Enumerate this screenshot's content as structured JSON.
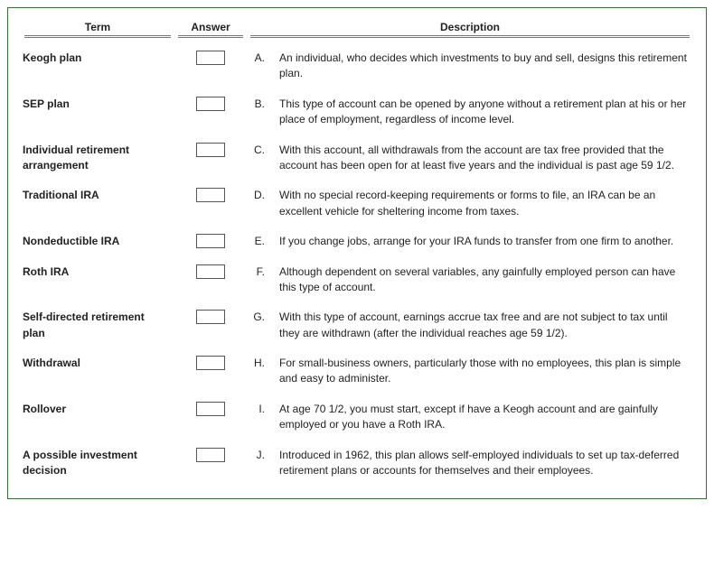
{
  "colors": {
    "border": "#3a6b3a",
    "header_underline": "#8a7a2a",
    "text": "#222222",
    "box_border": "#555555",
    "background": "#ffffff"
  },
  "headers": {
    "term": "Term",
    "answer": "Answer",
    "description": "Description"
  },
  "rows": [
    {
      "term": "Keogh plan",
      "letter": "A.",
      "desc": "An individual, who decides which investments to buy and sell, designs this retirement plan."
    },
    {
      "term": "SEP plan",
      "letter": "B.",
      "desc": "This type of account can be opened by anyone without a retirement plan at his or her place of employment, regardless of income level."
    },
    {
      "term": "Individual retirement arrangement",
      "letter": "C.",
      "desc": "With this account, all withdrawals from the account are tax free provided that the account has been open for at least five years and the individual is past age 59 1/2."
    },
    {
      "term": "Traditional IRA",
      "letter": "D.",
      "desc": "With no special record-keeping requirements or forms to file, an IRA can be an excellent vehicle for sheltering income from taxes."
    },
    {
      "term": "Nondeductible IRA",
      "letter": "E.",
      "desc": "If you change jobs, arrange for your IRA funds to transfer from one firm to another."
    },
    {
      "term": "Roth IRA",
      "letter": "F.",
      "desc": "Although dependent on several variables, any gainfully employed person can have this type of account."
    },
    {
      "term": "Self-directed retirement plan",
      "letter": "G.",
      "desc": "With this type of account, earnings accrue tax free and are not subject to tax until they are withdrawn (after the individual reaches age 59 1/2)."
    },
    {
      "term": "Withdrawal",
      "letter": "H.",
      "desc": "For small-business owners, particularly those with no employees, this plan is simple and easy to administer."
    },
    {
      "term": "Rollover",
      "letter": "I.",
      "desc": "At age 70 1/2, you must start, except if have a Keogh account and are gainfully employed or you have a Roth IRA."
    },
    {
      "term": "A possible investment decision",
      "letter": "J.",
      "desc": "Introduced in 1962, this plan allows self-employed individuals to set up tax-deferred retirement plans or accounts for themselves and their employees."
    }
  ]
}
